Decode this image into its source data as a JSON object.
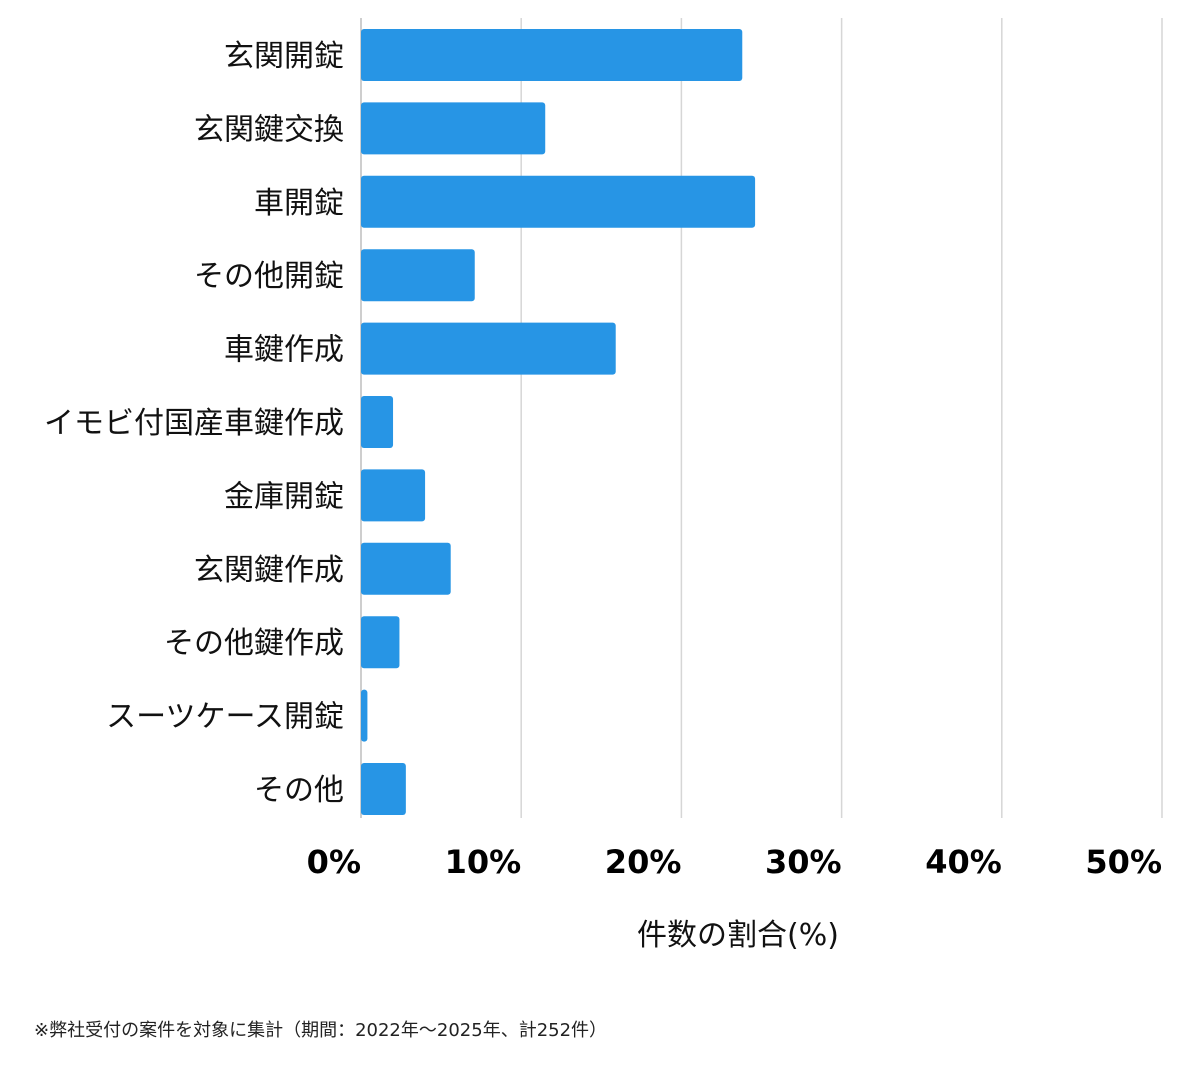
{
  "chart_data": {
    "type": "bar",
    "orientation": "horizontal",
    "categories": [
      "玄関開錠",
      "玄関鍵交換",
      "車開錠",
      "その他開錠",
      "車鍵作成",
      "イモビ付国産車鍵作成",
      "金庫開錠",
      "玄関鍵作成",
      "その他鍵作成",
      "スーツケース開錠",
      "その他"
    ],
    "values": [
      23.8,
      11.5,
      24.6,
      7.1,
      15.9,
      2.0,
      4.0,
      5.6,
      2.4,
      0.4,
      2.8
    ],
    "xlim": [
      0,
      50
    ],
    "xticks": [
      0,
      10,
      20,
      30,
      40,
      50
    ],
    "tick_labels": [
      "0%",
      "10%",
      "20%",
      "30%",
      "40%",
      "50%"
    ],
    "xlabel": "件数の割合(%)",
    "grid": "vertical",
    "bar_color": "#2795e5"
  },
  "footnote": "※弊社受付の案件を対象に集計（期間：2022年～2025年、計252件）"
}
